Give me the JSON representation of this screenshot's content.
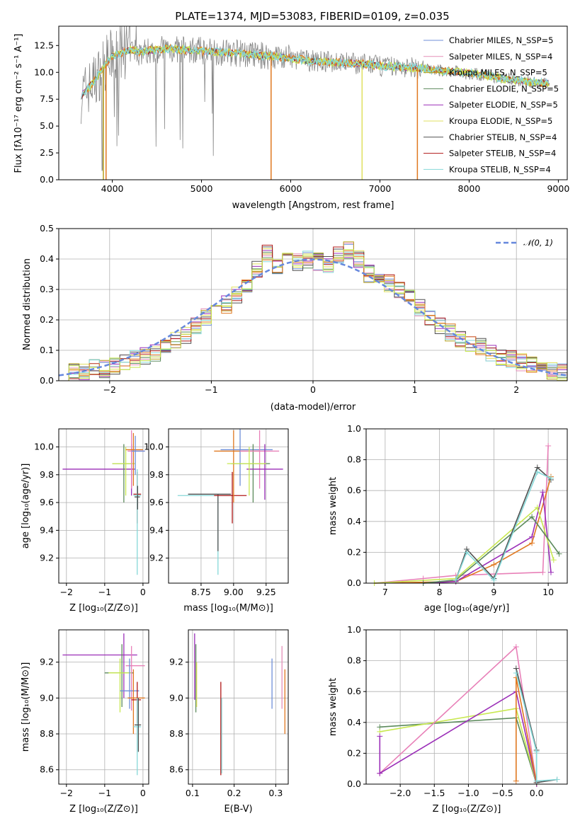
{
  "colors": {
    "series": [
      "#6f8fd8",
      "#e58fb8",
      "#b8a01e",
      "#5b8a5b",
      "#9b2fb8",
      "#e0e060",
      "#505050",
      "#b01818",
      "#86d8d8"
    ],
    "orange": "#e07820",
    "pink": "#e880b8",
    "purple": "#9b2fb8",
    "green": "#5b8a5b",
    "lime": "#c8e850",
    "cyan": "#86d8d8",
    "gray": "#888888",
    "normal_curve": "#6688dd",
    "grid": "#b0b0b0"
  },
  "chart_data": [
    {
      "id": "spectrum",
      "type": "line",
      "title": "PLATE=1374, MJD=53083, FIBERID=0109, z=0.035",
      "xlabel": "wavelength [Angstrom, rest frame]",
      "ylabel": "Flux [fλ10⁻¹⁷ erg cm⁻² s⁻¹ A⁻¹]",
      "xlim": [
        3400,
        9100
      ],
      "ylim": [
        0,
        14.3
      ],
      "xticks": [
        "4000",
        "5000",
        "6000",
        "7000",
        "8000",
        "9000"
      ],
      "yticks": [
        "0.0",
        "2.5",
        "5.0",
        "7.5",
        "10.0",
        "12.5"
      ],
      "legend_position": "top-right",
      "legend": [
        "Chabrier MILES, N_SSP=5",
        "Salpeter MILES, N_SSP=4",
        "Kroupa MILES, N_SSP=5",
        "Chabrier ELODIE, N_SSP=5",
        "Salpeter ELODIE, N_SSP=5",
        "Kroupa ELODIE, N_SSP=5",
        "Chabrier STELIB, N_SSP=4",
        "Salpeter STELIB, N_SSP=4",
        "Kroupa STELIB, N_SSP=4"
      ],
      "continuum": {
        "x": [
          3650,
          3700,
          3800,
          3900,
          4000,
          4100,
          4200,
          4300,
          4400,
          4600,
          4800,
          5000,
          5200,
          5400,
          5600,
          5800,
          6000,
          6200,
          6400,
          6600,
          6800,
          7000,
          7200,
          7400,
          7600,
          7800,
          8000,
          8200,
          8400,
          8600,
          8800
        ],
        "y": [
          7.8,
          8.3,
          9.2,
          10.5,
          11.6,
          11.8,
          12.1,
          11.9,
          12.0,
          12.2,
          12.1,
          12.0,
          11.9,
          11.8,
          11.6,
          11.5,
          11.3,
          11.1,
          11.0,
          10.9,
          10.8,
          10.6,
          10.5,
          10.4,
          10.2,
          10.1,
          9.9,
          9.7,
          9.4,
          9.2,
          9.0
        ]
      },
      "dropouts": [
        {
          "x": 3900,
          "color": "#b8a01e"
        },
        {
          "x": 3930,
          "color": "#e07820"
        },
        {
          "x": 5780,
          "color": "#e07820"
        },
        {
          "x": 6800,
          "color": "#e0e060"
        },
        {
          "x": 7420,
          "color": "#e07820"
        }
      ]
    },
    {
      "id": "residuals",
      "type": "line",
      "xlabel": "(data-model)/error",
      "ylabel": "Normed distribution",
      "xlim": [
        -2.5,
        2.5
      ],
      "ylim": [
        0,
        0.5
      ],
      "xticks": [
        "−2",
        "−1",
        "0",
        "1",
        "2"
      ],
      "yticks": [
        "0.0",
        "0.1",
        "0.2",
        "0.3",
        "0.4",
        "0.5"
      ],
      "legend_position": "top-right",
      "legend": [
        "𝒩(0, 1)"
      ],
      "bin_edges": [
        -2.5,
        -2.4,
        -2.3,
        -2.2,
        -2.1,
        -2.0,
        -1.9,
        -1.8,
        -1.7,
        -1.6,
        -1.5,
        -1.4,
        -1.3,
        -1.2,
        -1.1,
        -1.0,
        -0.9,
        -0.8,
        -0.7,
        -0.6,
        -0.5,
        -0.4,
        -0.3,
        -0.2,
        -0.1,
        0.0,
        0.1,
        0.2,
        0.3,
        0.4,
        0.5,
        0.6,
        0.7,
        0.8,
        0.9,
        1.0,
        1.1,
        1.2,
        1.3,
        1.4,
        1.5,
        1.6,
        1.7,
        1.8,
        1.9,
        2.0,
        2.1,
        2.2,
        2.3,
        2.4,
        2.5
      ],
      "hist_base": [
        0.02,
        0.03,
        0.03,
        0.04,
        0.04,
        0.05,
        0.06,
        0.07,
        0.08,
        0.09,
        0.12,
        0.13,
        0.15,
        0.18,
        0.21,
        0.22,
        0.25,
        0.28,
        0.32,
        0.37,
        0.42,
        0.38,
        0.4,
        0.39,
        0.4,
        0.39,
        0.38,
        0.41,
        0.43,
        0.4,
        0.35,
        0.34,
        0.32,
        0.3,
        0.27,
        0.24,
        0.21,
        0.18,
        0.16,
        0.14,
        0.12,
        0.11,
        0.09,
        0.08,
        0.07,
        0.06,
        0.05,
        0.04,
        0.03,
        0.03
      ]
    },
    {
      "id": "age-vs-Z",
      "type": "scatter",
      "xlabel": "Z [log₁₀(Z/Z⊙)]",
      "ylabel": "age  [log₁₀(age/yr)]",
      "xlim": [
        -2.2,
        0.15
      ],
      "ylim": [
        9.02,
        10.13
      ],
      "xticks": [
        "−2",
        "−1",
        "0"
      ],
      "yticks": [
        "9.2",
        "9.4",
        "9.6",
        "9.8",
        "10.0"
      ]
    },
    {
      "id": "age-vs-mass",
      "type": "scatter",
      "xlabel": "mass [log₁₀(M/M⊙)]",
      "ylabel": "",
      "xlim": [
        8.5,
        9.42
      ],
      "ylim": [
        9.02,
        10.13
      ],
      "xticks": [
        "8.75",
        "9.00",
        "9.25"
      ],
      "yticks": [
        "9.2",
        "9.4",
        "9.6",
        "9.8",
        "10.0"
      ]
    },
    {
      "id": "massweight-vs-age",
      "type": "line",
      "xlabel": "age  [log₁₀(age/yr)]",
      "ylabel": "mass weight",
      "xlim": [
        6.65,
        10.35
      ],
      "ylim": [
        0,
        1
      ],
      "xticks": [
        "7",
        "8",
        "9",
        "10"
      ],
      "yticks": [
        "0.0",
        "0.2",
        "0.4",
        "0.6",
        "0.8",
        "1.0"
      ]
    },
    {
      "id": "mass-vs-Z",
      "type": "scatter",
      "xlabel": "Z [log₁₀(Z/Z⊙)]",
      "ylabel": "mass [log₁₀(M/M⊙)]",
      "xlim": [
        -2.2,
        0.15
      ],
      "ylim": [
        8.52,
        9.38
      ],
      "xticks": [
        "−2",
        "−1",
        "0"
      ],
      "yticks": [
        "8.6",
        "8.8",
        "9.0",
        "9.2"
      ]
    },
    {
      "id": "mass-vs-EBV",
      "type": "scatter",
      "xlabel": "E(B-V)",
      "ylabel": "",
      "xlim": [
        0.09,
        0.33
      ],
      "ylim": [
        8.52,
        9.38
      ],
      "xticks": [
        "0.1",
        "0.2",
        "0.3"
      ],
      "yticks": [
        "8.6",
        "8.8",
        "9.0",
        "9.2"
      ],
      "points": [
        {
          "x": 0.105,
          "lo": 8.99,
          "hi": 9.36,
          "c": "#9b2fb8"
        },
        {
          "x": 0.108,
          "lo": 8.92,
          "hi": 9.3,
          "c": "#5b8a5b"
        },
        {
          "x": 0.11,
          "lo": 8.95,
          "hi": 9.2,
          "c": "#e0e060"
        },
        {
          "x": 0.168,
          "lo": 8.57,
          "hi": 9.09,
          "c": "#b01818"
        },
        {
          "x": 0.17,
          "lo": 8.58,
          "hi": 9.0,
          "c": "#86d8d8"
        },
        {
          "x": 0.291,
          "lo": 8.94,
          "hi": 9.22,
          "c": "#6f8fd8"
        },
        {
          "x": 0.315,
          "lo": 8.94,
          "hi": 9.29,
          "c": "#e58fb8"
        },
        {
          "x": 0.322,
          "lo": 8.8,
          "hi": 9.16,
          "c": "#e07820"
        }
      ]
    },
    {
      "id": "massweight-vs-Z",
      "type": "line",
      "xlabel": "Z [log₁₀(Z/Z⊙)]",
      "ylabel": "mass weight",
      "xlim": [
        -2.5,
        0.45
      ],
      "ylim": [
        0,
        1
      ],
      "xticks": [
        "−2.0",
        "−1.5",
        "−1.0",
        "−0.5",
        "0.0"
      ],
      "yticks": [
        "0.0",
        "0.2",
        "0.4",
        "0.6",
        "0.8",
        "1.0"
      ]
    }
  ]
}
